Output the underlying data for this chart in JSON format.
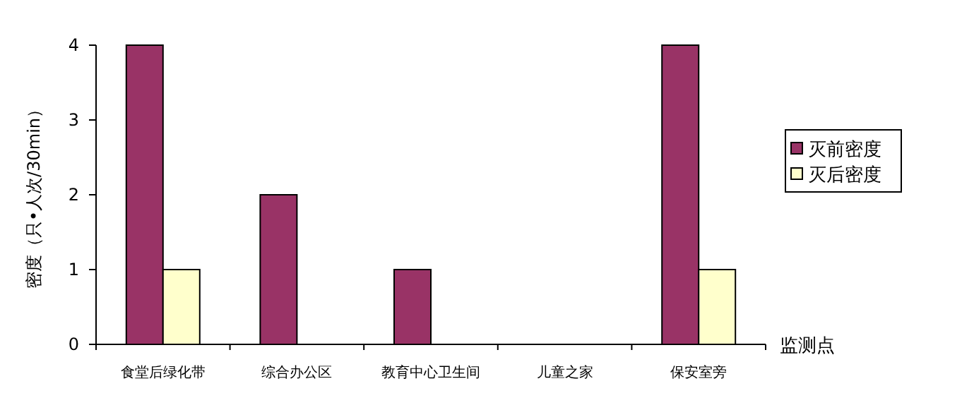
{
  "chart_data": {
    "type": "bar",
    "ylabel": "密度（只•人次/30min）",
    "xlabel": "监测点",
    "categories": [
      "食堂后绿化带",
      "综合办公区",
      "教育中心卫生间",
      "儿童之家",
      "保安室旁"
    ],
    "series": [
      {
        "name": "灭前密度",
        "color": "#993366",
        "values": [
          4,
          2,
          1,
          0,
          4
        ]
      },
      {
        "name": "灭后密度",
        "color": "#ffffcc",
        "values": [
          1,
          0,
          0,
          0,
          1
        ]
      }
    ],
    "ylim": [
      0,
      4
    ],
    "yticks": [
      0,
      1,
      2,
      3,
      4
    ],
    "legend": "right"
  }
}
